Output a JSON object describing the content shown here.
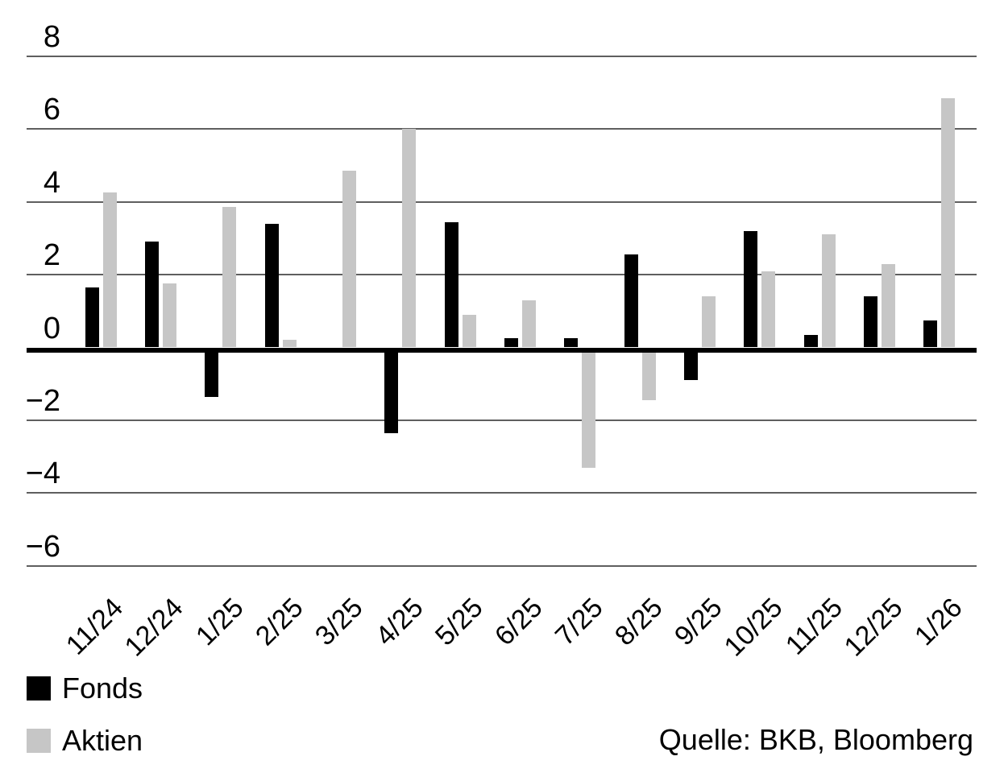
{
  "chart_data": {
    "type": "bar",
    "title": "",
    "xlabel": "",
    "ylabel": "",
    "categories": [
      "11/24",
      "12/24",
      "1/25",
      "2/25",
      "3/25",
      "4/25",
      "5/25",
      "6/25",
      "7/25",
      "8/25",
      "9/25",
      "10/25",
      "11/25",
      "12/25",
      "1/26"
    ],
    "series": [
      {
        "name": "Fonds",
        "color": "#000000",
        "values": [
          1.65,
          2.9,
          -1.35,
          3.4,
          -0.15,
          -2.35,
          3.45,
          0.25,
          0.25,
          2.55,
          -0.9,
          3.2,
          0.35,
          1.4,
          0.75
        ]
      },
      {
        "name": "Aktien",
        "color": "#c6c6c6",
        "values": [
          4.25,
          1.75,
          3.85,
          0.2,
          4.85,
          6.0,
          0.9,
          1.3,
          -3.3,
          -1.45,
          1.4,
          2.1,
          3.1,
          2.3,
          6.85
        ]
      }
    ],
    "ylim": [
      -6,
      8
    ],
    "yticks": [
      8,
      6,
      4,
      2,
      0,
      -2,
      -4,
      -6
    ],
    "ytick_labels": [
      "8",
      "6",
      "4",
      "2",
      "0",
      "−2",
      "−4",
      "−6"
    ],
    "grid": true,
    "legend_position": "bottom-left",
    "x_tick_rotation_deg": 45
  },
  "legend": {
    "items": [
      {
        "label": "Fonds",
        "color": "#000000"
      },
      {
        "label": "Aktien",
        "color": "#c6c6c6"
      }
    ]
  },
  "source": {
    "text": "Quelle: BKB, Bloomberg"
  },
  "colors": {
    "background": "#ffffff",
    "gridline": "#5f5f5f",
    "zero_axis": "#000000",
    "fonds": "#000000",
    "aktien": "#c6c6c6"
  }
}
